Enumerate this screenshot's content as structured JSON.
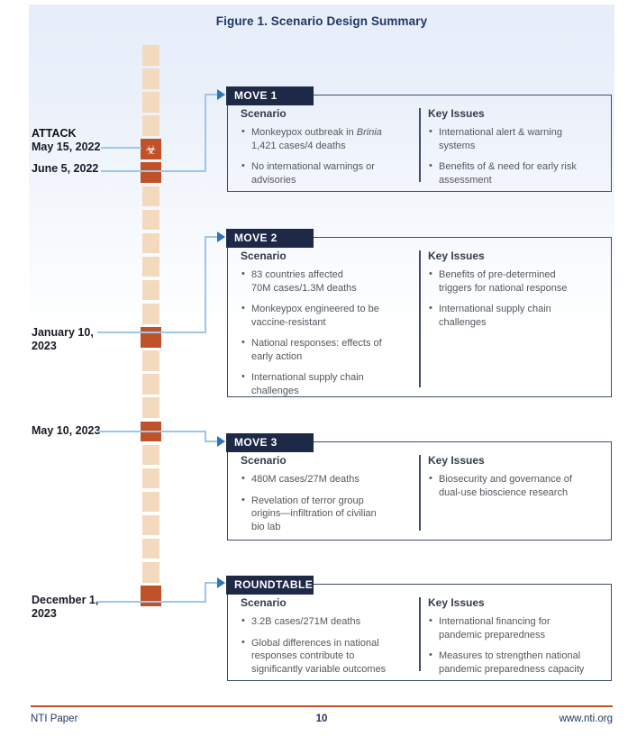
{
  "figure": {
    "title": "Figure 1. Scenario Design Summary"
  },
  "colors": {
    "header_navy": "#1e2847",
    "box_border": "#3e4d6e",
    "timeline_beige": "#f3d9bd",
    "timeline_highlight": "#c05229",
    "connector_blue": "#9dc6e8",
    "arrow_blue": "#2e74b5",
    "title_navy": "#1e3765",
    "footer_rule_rust": "#bf512a"
  },
  "timeline": {
    "segment_count": 24,
    "highlight_indices": [
      4,
      5,
      12,
      16,
      23
    ],
    "biohazard_index": 4,
    "biohazard_icon": "☣"
  },
  "dates": {
    "attack_label": "ATTACK",
    "attack_date": "May 15, 2022",
    "move1_date": "June 5, 2022",
    "move2_date": "January 10,\n2023",
    "move3_date": "May 10, 2023",
    "roundtable_date": "December 1,\n2023"
  },
  "boxes": [
    {
      "header": "MOVE 1",
      "scenario": {
        "heading": "Scenario",
        "bullets": [
          "Monkeypox outbreak in *Brinia*\n1,421 cases/4 deaths",
          "No international warnings or\nadvisories"
        ]
      },
      "key_issues": {
        "heading": "Key Issues",
        "bullets": [
          "International alert & warning\nsystems",
          "Benefits of & need for early risk\nassessment"
        ]
      }
    },
    {
      "header": "MOVE 2",
      "scenario": {
        "heading": "Scenario",
        "bullets": [
          "83 countries affected\n70M cases/1.3M deaths",
          "Monkeypox engineered to be\nvaccine-resistant",
          "National responses: effects of\nearly action",
          "International supply chain\nchallenges"
        ]
      },
      "key_issues": {
        "heading": "Key Issues",
        "bullets": [
          "Benefits of pre-determined\ntriggers for national response",
          "International supply chain\nchallenges"
        ]
      }
    },
    {
      "header": "MOVE 3",
      "scenario": {
        "heading": "Scenario",
        "bullets": [
          "480M cases/27M deaths",
          "Revelation of terror group\norigins—infiltration of civilian\nbio lab"
        ]
      },
      "key_issues": {
        "heading": "Key Issues",
        "bullets": [
          "Biosecurity and governance of\ndual-use bioscience research"
        ]
      }
    },
    {
      "header": "ROUNDTABLE",
      "scenario": {
        "heading": "Scenario",
        "bullets": [
          "3.2B cases/271M deaths",
          "Global differences in national\nresponses contribute to\nsignificantly variable outcomes"
        ]
      },
      "key_issues": {
        "heading": "Key Issues",
        "bullets": [
          "International financing for\npandemic preparedness",
          "Measures to strengthen national\npandemic preparedness capacity"
        ]
      }
    }
  ],
  "footer": {
    "left": "NTI Paper",
    "page": "10",
    "right": "www.nti.org"
  }
}
